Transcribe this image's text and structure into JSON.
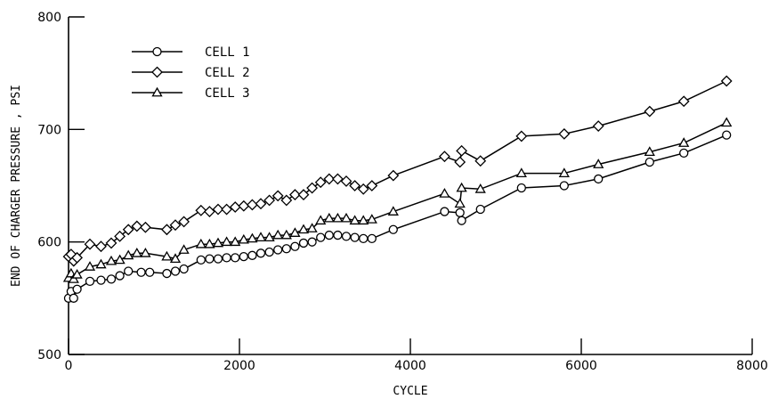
{
  "chart_data": {
    "type": "line",
    "title": "",
    "xlabel": "CYCLE",
    "ylabel": "END OF CHARGER PRESSURE , PSI",
    "xlim": [
      0,
      8000
    ],
    "ylim": [
      500,
      800
    ],
    "xticks": [
      0,
      2000,
      4000,
      6000,
      8000
    ],
    "yticks": [
      500,
      600,
      700,
      800
    ],
    "grid": false,
    "legend_position": "top-left",
    "series": [
      {
        "name": "CELL 1",
        "marker": "circle",
        "points": [
          [
            0,
            550
          ],
          [
            30,
            556
          ],
          [
            60,
            550
          ],
          [
            100,
            558
          ],
          [
            250,
            565
          ],
          [
            380,
            566
          ],
          [
            500,
            567
          ],
          [
            600,
            570
          ],
          [
            700,
            574
          ],
          [
            850,
            573
          ],
          [
            950,
            573
          ],
          [
            1150,
            572
          ],
          [
            1250,
            574
          ],
          [
            1350,
            576
          ],
          [
            1550,
            584
          ],
          [
            1650,
            585
          ],
          [
            1750,
            585
          ],
          [
            1850,
            586
          ],
          [
            1950,
            586
          ],
          [
            2050,
            587
          ],
          [
            2150,
            588
          ],
          [
            2250,
            590
          ],
          [
            2350,
            591
          ],
          [
            2450,
            593
          ],
          [
            2550,
            594
          ],
          [
            2650,
            596
          ],
          [
            2750,
            599
          ],
          [
            2850,
            600
          ],
          [
            2950,
            604
          ],
          [
            3050,
            606
          ],
          [
            3150,
            606
          ],
          [
            3250,
            605
          ],
          [
            3350,
            604
          ],
          [
            3450,
            603
          ],
          [
            3550,
            603
          ],
          [
            3800,
            611
          ],
          [
            4400,
            627
          ],
          [
            4580,
            626
          ],
          [
            4600,
            619
          ],
          [
            4820,
            629
          ],
          [
            5300,
            648
          ],
          [
            5800,
            650
          ],
          [
            6200,
            656
          ],
          [
            6800,
            671
          ],
          [
            7200,
            679
          ],
          [
            7700,
            695
          ]
        ]
      },
      {
        "name": "CELL 2",
        "marker": "diamond",
        "points": [
          [
            0,
            587
          ],
          [
            30,
            589
          ],
          [
            60,
            583
          ],
          [
            100,
            586
          ],
          [
            250,
            598
          ],
          [
            380,
            596
          ],
          [
            500,
            599
          ],
          [
            600,
            605
          ],
          [
            700,
            611
          ],
          [
            800,
            614
          ],
          [
            900,
            613
          ],
          [
            1150,
            611
          ],
          [
            1250,
            615
          ],
          [
            1350,
            618
          ],
          [
            1550,
            628
          ],
          [
            1650,
            627
          ],
          [
            1750,
            629
          ],
          [
            1850,
            629
          ],
          [
            1950,
            631
          ],
          [
            2050,
            632
          ],
          [
            2150,
            633
          ],
          [
            2250,
            634
          ],
          [
            2350,
            637
          ],
          [
            2450,
            641
          ],
          [
            2550,
            637
          ],
          [
            2650,
            642
          ],
          [
            2750,
            642
          ],
          [
            2850,
            648
          ],
          [
            2950,
            653
          ],
          [
            3050,
            656
          ],
          [
            3150,
            656
          ],
          [
            3250,
            654
          ],
          [
            3350,
            650
          ],
          [
            3450,
            647
          ],
          [
            3550,
            650
          ],
          [
            3800,
            659
          ],
          [
            4400,
            676
          ],
          [
            4580,
            671
          ],
          [
            4600,
            681
          ],
          [
            4820,
            672
          ],
          [
            5300,
            694
          ],
          [
            5800,
            696
          ],
          [
            6200,
            703
          ],
          [
            6800,
            716
          ],
          [
            7200,
            725
          ],
          [
            7700,
            743
          ]
        ]
      },
      {
        "name": "CELL 3",
        "marker": "triangle",
        "points": [
          [
            0,
            568
          ],
          [
            30,
            572
          ],
          [
            60,
            567
          ],
          [
            100,
            571
          ],
          [
            250,
            578
          ],
          [
            380,
            580
          ],
          [
            500,
            583
          ],
          [
            600,
            584
          ],
          [
            700,
            588
          ],
          [
            800,
            590
          ],
          [
            900,
            590
          ],
          [
            1150,
            587
          ],
          [
            1250,
            585
          ],
          [
            1350,
            593
          ],
          [
            1550,
            598
          ],
          [
            1650,
            598
          ],
          [
            1750,
            599
          ],
          [
            1850,
            600
          ],
          [
            1950,
            600
          ],
          [
            2050,
            602
          ],
          [
            2150,
            603
          ],
          [
            2250,
            604
          ],
          [
            2350,
            604
          ],
          [
            2450,
            606
          ],
          [
            2550,
            606
          ],
          [
            2650,
            608
          ],
          [
            2750,
            611
          ],
          [
            2850,
            612
          ],
          [
            2950,
            619
          ],
          [
            3050,
            621
          ],
          [
            3150,
            621
          ],
          [
            3250,
            621
          ],
          [
            3350,
            619
          ],
          [
            3450,
            619
          ],
          [
            3550,
            620
          ],
          [
            3800,
            627
          ],
          [
            4400,
            643
          ],
          [
            4580,
            634
          ],
          [
            4600,
            648
          ],
          [
            4820,
            647
          ],
          [
            5300,
            661
          ],
          [
            5800,
            661
          ],
          [
            6200,
            669
          ],
          [
            6800,
            680
          ],
          [
            7200,
            688
          ],
          [
            7700,
            706
          ]
        ]
      }
    ]
  }
}
